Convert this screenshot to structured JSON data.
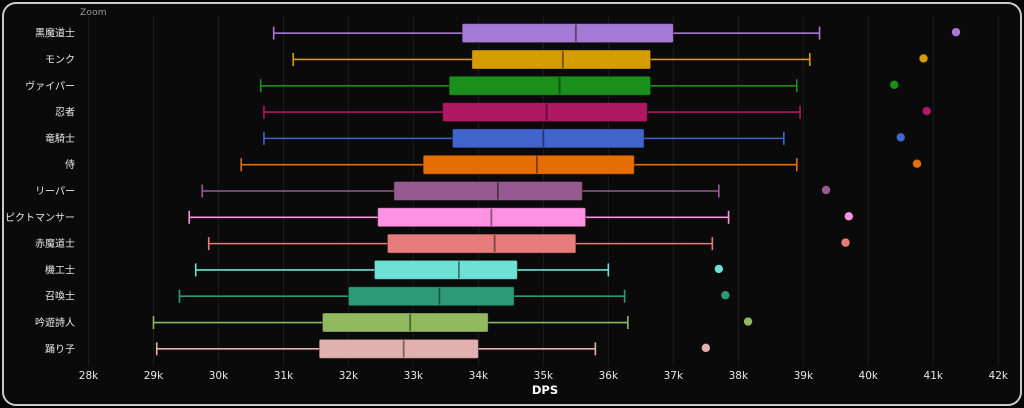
{
  "chart": {
    "zoom_label": "Zoom"
  },
  "chart_data": {
    "type": "boxplot",
    "orientation": "horizontal",
    "title": "",
    "xlabel": "DPS",
    "xlim": [
      27900,
      42150
    ],
    "grid": "vertical",
    "x_ticks": [
      {
        "value": 28000,
        "label": "28k"
      },
      {
        "value": 29000,
        "label": "29k"
      },
      {
        "value": 30000,
        "label": "30k"
      },
      {
        "value": 31000,
        "label": "31k"
      },
      {
        "value": 32000,
        "label": "32k"
      },
      {
        "value": 33000,
        "label": "33k"
      },
      {
        "value": 34000,
        "label": "34k"
      },
      {
        "value": 35000,
        "label": "35k"
      },
      {
        "value": 36000,
        "label": "36k"
      },
      {
        "value": 37000,
        "label": "37k"
      },
      {
        "value": 38000,
        "label": "38k"
      },
      {
        "value": 39000,
        "label": "39k"
      },
      {
        "value": 40000,
        "label": "40k"
      },
      {
        "value": 41000,
        "label": "41k"
      },
      {
        "value": 42000,
        "label": "42k"
      }
    ],
    "series": [
      {
        "label": "黒魔道士",
        "color": "#a579d6",
        "min": 30850,
        "q1": 33750,
        "median": 35500,
        "q3": 37000,
        "max": 39250,
        "outliers": [
          41350
        ]
      },
      {
        "label": "モンク",
        "color": "#d69c00",
        "min": 31150,
        "q1": 33900,
        "median": 35300,
        "q3": 36650,
        "max": 39100,
        "outliers": [
          40850
        ]
      },
      {
        "label": "ヴァイパー",
        "color": "#1a8f1a",
        "min": 30650,
        "q1": 33550,
        "median": 35250,
        "q3": 36650,
        "max": 38900,
        "outliers": [
          40400
        ]
      },
      {
        "label": "忍者",
        "color": "#af1964",
        "min": 30700,
        "q1": 33450,
        "median": 35050,
        "q3": 36600,
        "max": 38950,
        "outliers": [
          40900
        ]
      },
      {
        "label": "竜騎士",
        "color": "#4164cd",
        "min": 30700,
        "q1": 33600,
        "median": 35000,
        "q3": 36550,
        "max": 38700,
        "outliers": [
          40500
        ]
      },
      {
        "label": "侍",
        "color": "#e46d04",
        "min": 30350,
        "q1": 33150,
        "median": 34900,
        "q3": 36400,
        "max": 38900,
        "outliers": [
          40750
        ]
      },
      {
        "label": "リーパー",
        "color": "#965a90",
        "min": 29750,
        "q1": 32700,
        "median": 34300,
        "q3": 35600,
        "max": 37700,
        "outliers": [
          39350
        ]
      },
      {
        "label": "ピクトマンサー",
        "color": "#fc92e1",
        "min": 29550,
        "q1": 32450,
        "median": 34200,
        "q3": 35650,
        "max": 37850,
        "outliers": [
          39700
        ]
      },
      {
        "label": "赤魔道士",
        "color": "#e87b7b",
        "min": 29850,
        "q1": 32600,
        "median": 34250,
        "q3": 35500,
        "max": 37600,
        "outliers": [
          39650
        ]
      },
      {
        "label": "機工士",
        "color": "#6ee1d6",
        "min": 29650,
        "q1": 32400,
        "median": 33700,
        "q3": 34600,
        "max": 36000,
        "outliers": [
          37700
        ]
      },
      {
        "label": "召喚士",
        "color": "#2d9b78",
        "min": 29400,
        "q1": 32000,
        "median": 33400,
        "q3": 34550,
        "max": 36250,
        "outliers": [
          37800
        ]
      },
      {
        "label": "吟遊詩人",
        "color": "#91ba5e",
        "min": 29000,
        "q1": 31600,
        "median": 32950,
        "q3": 34150,
        "max": 36300,
        "outliers": [
          38150
        ]
      },
      {
        "label": "踊り子",
        "color": "#e2b0af",
        "min": 29050,
        "q1": 31550,
        "median": 32850,
        "q3": 34000,
        "max": 35800,
        "outliers": [
          37500
        ]
      }
    ]
  }
}
